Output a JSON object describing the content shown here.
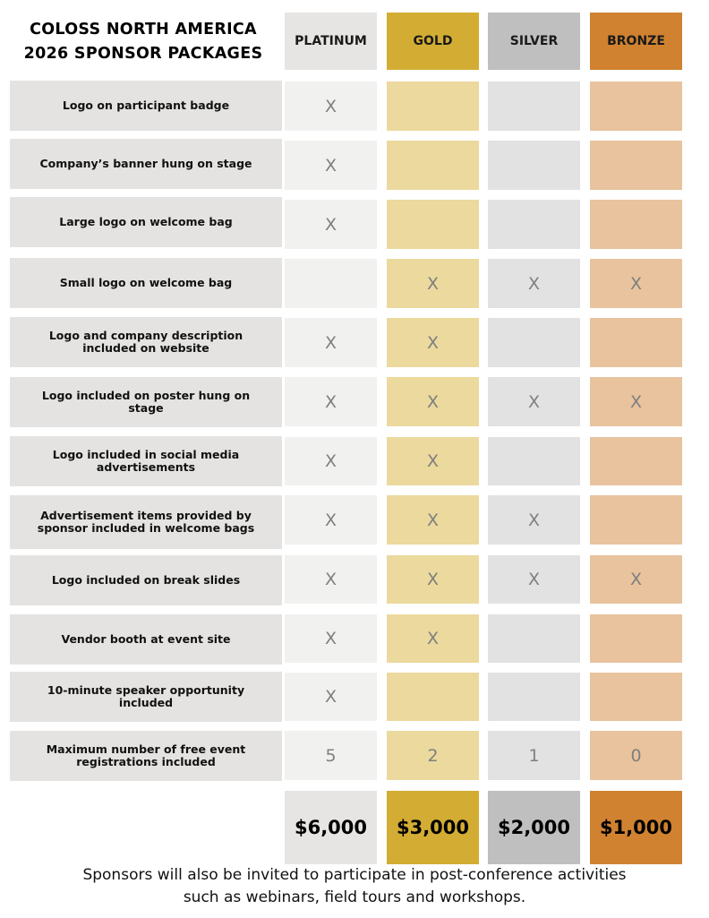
{
  "title": {
    "line1": "COLOSS NORTH AMERICA",
    "line2": "2026 SPONSOR PACKAGES"
  },
  "tiers": [
    {
      "name": "PLATINUM",
      "price": "$6,000",
      "header_color": "#e6e5e3",
      "cell_color": "#f1f1f0",
      "price_color": "#e6e5e3"
    },
    {
      "name": "GOLD",
      "price": "$3,000",
      "header_color": "#d3ad33",
      "cell_color": "#ebd99e",
      "price_color": "#d3ad33"
    },
    {
      "name": "SILVER",
      "price": "$2,000",
      "header_color": "#bfbfbf",
      "cell_color": "#e2e2e2",
      "price_color": "#bfbfbf"
    },
    {
      "name": "BRONZE",
      "price": "$1,000",
      "header_color": "#d08231",
      "cell_color": "#e8c39e",
      "price_color": "#d08231"
    }
  ],
  "rows": [
    {
      "feature": "Logo on participant badge",
      "cells": [
        "X",
        "",
        "",
        ""
      ]
    },
    {
      "feature": "Company’s banner hung on stage",
      "cells": [
        "X",
        "",
        "",
        ""
      ]
    },
    {
      "feature": "Large logo on welcome bag",
      "cells": [
        "X",
        "",
        "",
        ""
      ]
    },
    {
      "feature": "Small logo on welcome bag",
      "cells": [
        "",
        "X",
        "X",
        "X"
      ]
    },
    {
      "feature": "Logo and company description included on website",
      "cells": [
        "X",
        "X",
        "",
        ""
      ]
    },
    {
      "feature": "Logo included on poster hung on stage",
      "cells": [
        "X",
        "X",
        "X",
        "X"
      ]
    },
    {
      "feature": "Logo included in social media advertisements",
      "cells": [
        "X",
        "X",
        "",
        ""
      ]
    },
    {
      "feature": "Advertisement items provided by sponsor included in welcome bags",
      "cells": [
        "X",
        "X",
        "X",
        ""
      ]
    },
    {
      "feature": "Logo included on break slides",
      "cells": [
        "X",
        "X",
        "X",
        "X"
      ]
    },
    {
      "feature": "Vendor booth at event site",
      "cells": [
        "X",
        "X",
        "",
        ""
      ]
    },
    {
      "feature": "10-minute speaker opportunity included",
      "cells": [
        "X",
        "",
        "",
        ""
      ]
    },
    {
      "feature": "Maximum number of free event registrations included",
      "cells": [
        "5",
        "2",
        "1",
        "0"
      ]
    }
  ],
  "footnote": "Sponsors will also be invited to participate in post-conference activities such as webinars, field tours and workshops."
}
